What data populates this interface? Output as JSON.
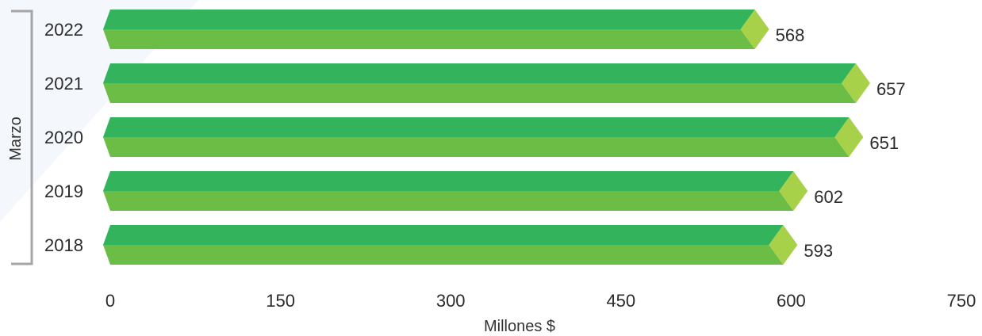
{
  "chart_data": {
    "type": "bar",
    "orientation": "horizontal",
    "style": "3d-prism",
    "categories": [
      "2022",
      "2021",
      "2020",
      "2019",
      "2018"
    ],
    "values": [
      568,
      657,
      651,
      602,
      593
    ],
    "data_labels": [
      "568",
      "657",
      "651",
      "602",
      "593"
    ],
    "xlabel": "Millones $",
    "ylabel": "Marzo",
    "xlim": [
      0,
      750
    ],
    "xticks": [
      "0",
      "150",
      "300",
      "450",
      "600",
      "750"
    ],
    "grid": false,
    "legend": "none"
  },
  "colors": {
    "bar_top": "#33b35c",
    "bar_bottom": "#6cbd45",
    "bar_tip": "#a8d14a",
    "bracket": "#a6a6a6",
    "background_accent": "#f4f7fc"
  }
}
